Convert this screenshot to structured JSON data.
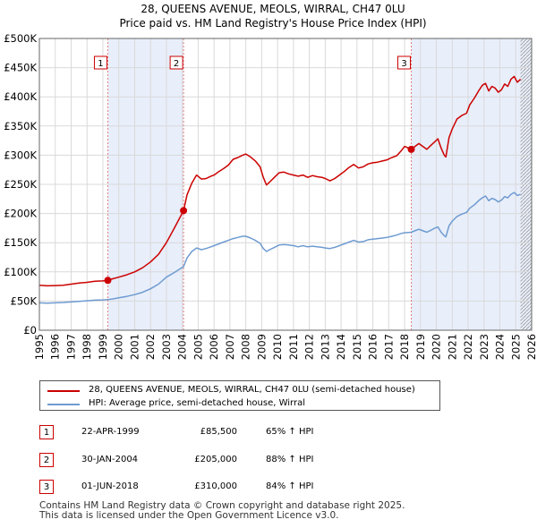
{
  "chart_data": {
    "type": "line",
    "title": "28, QUEENS AVENUE, MEOLS, WIRRAL, CH47 0LU",
    "subtitle": "Price paid vs. HM Land Registry's House Price Index (HPI)",
    "xlabel": "",
    "ylabel": "",
    "xlim": [
      1995,
      2026
    ],
    "ylim": [
      0,
      500000
    ],
    "x_ticks": [
      "1995",
      "1996",
      "1997",
      "1998",
      "1999",
      "2000",
      "2001",
      "2002",
      "2003",
      "2004",
      "2005",
      "2006",
      "2007",
      "2008",
      "2009",
      "2010",
      "2011",
      "2012",
      "2013",
      "2014",
      "2015",
      "2016",
      "2017",
      "2018",
      "2019",
      "2020",
      "2021",
      "2022",
      "2023",
      "2024",
      "2025",
      "2026"
    ],
    "y_ticks": [
      {
        "value": 0,
        "label": "£0"
      },
      {
        "value": 50000,
        "label": "£50K"
      },
      {
        "value": 100000,
        "label": "£100K"
      },
      {
        "value": 150000,
        "label": "£150K"
      },
      {
        "value": 200000,
        "label": "£200K"
      },
      {
        "value": 250000,
        "label": "£250K"
      },
      {
        "value": 300000,
        "label": "£300K"
      },
      {
        "value": 350000,
        "label": "£350K"
      },
      {
        "value": 400000,
        "label": "£400K"
      },
      {
        "value": 450000,
        "label": "£450K"
      },
      {
        "value": 500000,
        "label": "£500K"
      }
    ],
    "grid": true,
    "series": [
      {
        "name": "28, QUEENS AVENUE, MEOLS, WIRRAL, CH47 0LU (semi-detached house)",
        "color": "#cc0000",
        "points": [
          [
            1995.0,
            77000
          ],
          [
            1995.5,
            76000
          ],
          [
            1996.0,
            76500
          ],
          [
            1996.5,
            77000
          ],
          [
            1997.0,
            79000
          ],
          [
            1997.5,
            81000
          ],
          [
            1998.0,
            82000
          ],
          [
            1998.5,
            84000
          ],
          [
            1999.0,
            84500
          ],
          [
            1999.3,
            85500
          ],
          [
            1999.6,
            88000
          ],
          [
            2000.0,
            91000
          ],
          [
            2000.5,
            95000
          ],
          [
            2001.0,
            100000
          ],
          [
            2001.5,
            107000
          ],
          [
            2002.0,
            117000
          ],
          [
            2002.5,
            130000
          ],
          [
            2003.0,
            150000
          ],
          [
            2003.5,
            175000
          ],
          [
            2004.08,
            205000
          ],
          [
            2004.3,
            232000
          ],
          [
            2004.6,
            252000
          ],
          [
            2004.9,
            266000
          ],
          [
            2005.2,
            259000
          ],
          [
            2005.5,
            260000
          ],
          [
            2005.8,
            264000
          ],
          [
            2006.0,
            266000
          ],
          [
            2006.3,
            272000
          ],
          [
            2006.6,
            277000
          ],
          [
            2006.9,
            283000
          ],
          [
            2007.2,
            293000
          ],
          [
            2007.5,
            296000
          ],
          [
            2007.8,
            300000
          ],
          [
            2008.0,
            302000
          ],
          [
            2008.3,
            297000
          ],
          [
            2008.6,
            290000
          ],
          [
            2008.9,
            280000
          ],
          [
            2009.1,
            262000
          ],
          [
            2009.3,
            249000
          ],
          [
            2009.5,
            254000
          ],
          [
            2009.8,
            262000
          ],
          [
            2010.1,
            270000
          ],
          [
            2010.4,
            271000
          ],
          [
            2010.7,
            268000
          ],
          [
            2011.0,
            266000
          ],
          [
            2011.3,
            264000
          ],
          [
            2011.6,
            266000
          ],
          [
            2011.9,
            262000
          ],
          [
            2012.2,
            265000
          ],
          [
            2012.5,
            263000
          ],
          [
            2012.8,
            262000
          ],
          [
            2013.0,
            260000
          ],
          [
            2013.3,
            256000
          ],
          [
            2013.6,
            260000
          ],
          [
            2013.9,
            266000
          ],
          [
            2014.2,
            272000
          ],
          [
            2014.5,
            279000
          ],
          [
            2014.8,
            284000
          ],
          [
            2015.1,
            278000
          ],
          [
            2015.4,
            280000
          ],
          [
            2015.7,
            285000
          ],
          [
            2016.0,
            287000
          ],
          [
            2016.3,
            288000
          ],
          [
            2016.6,
            290000
          ],
          [
            2016.9,
            292000
          ],
          [
            2017.2,
            296000
          ],
          [
            2017.5,
            299000
          ],
          [
            2017.8,
            308000
          ],
          [
            2018.0,
            315000
          ],
          [
            2018.42,
            310000
          ],
          [
            2018.7,
            316000
          ],
          [
            2018.9,
            320000
          ],
          [
            2019.1,
            316000
          ],
          [
            2019.4,
            310000
          ],
          [
            2019.7,
            318000
          ],
          [
            2019.9,
            323000
          ],
          [
            2020.1,
            328000
          ],
          [
            2020.3,
            312000
          ],
          [
            2020.5,
            300000
          ],
          [
            2020.6,
            297000
          ],
          [
            2020.8,
            330000
          ],
          [
            2021.0,
            345000
          ],
          [
            2021.3,
            362000
          ],
          [
            2021.6,
            368000
          ],
          [
            2021.9,
            372000
          ],
          [
            2022.1,
            386000
          ],
          [
            2022.4,
            398000
          ],
          [
            2022.7,
            412000
          ],
          [
            2022.9,
            420000
          ],
          [
            2023.1,
            423000
          ],
          [
            2023.3,
            410000
          ],
          [
            2023.5,
            418000
          ],
          [
            2023.7,
            415000
          ],
          [
            2023.9,
            408000
          ],
          [
            2024.1,
            412000
          ],
          [
            2024.3,
            422000
          ],
          [
            2024.5,
            418000
          ],
          [
            2024.7,
            430000
          ],
          [
            2024.9,
            435000
          ],
          [
            2025.1,
            425000
          ],
          [
            2025.3,
            430000
          ]
        ]
      },
      {
        "name": "HPI: Average price, semi-detached house, Wirral",
        "color": "#6e9bd1",
        "points": [
          [
            1995.0,
            47000
          ],
          [
            1995.5,
            46500
          ],
          [
            1996.0,
            47000
          ],
          [
            1996.5,
            47500
          ],
          [
            1997.0,
            48500
          ],
          [
            1997.5,
            49500
          ],
          [
            1998.0,
            50500
          ],
          [
            1998.5,
            51500
          ],
          [
            1999.0,
            52000
          ],
          [
            1999.3,
            52500
          ],
          [
            1999.6,
            53500
          ],
          [
            2000.0,
            55500
          ],
          [
            2000.5,
            58000
          ],
          [
            2001.0,
            61000
          ],
          [
            2001.5,
            65000
          ],
          [
            2002.0,
            71000
          ],
          [
            2002.5,
            79000
          ],
          [
            2003.0,
            91000
          ],
          [
            2003.5,
            99000
          ],
          [
            2004.08,
            109000
          ],
          [
            2004.3,
            124000
          ],
          [
            2004.6,
            135000
          ],
          [
            2004.9,
            141000
          ],
          [
            2005.2,
            138000
          ],
          [
            2005.5,
            140000
          ],
          [
            2005.8,
            143000
          ],
          [
            2006.0,
            145000
          ],
          [
            2006.3,
            148000
          ],
          [
            2006.6,
            151000
          ],
          [
            2006.9,
            154000
          ],
          [
            2007.2,
            157000
          ],
          [
            2007.5,
            159000
          ],
          [
            2007.8,
            161000
          ],
          [
            2008.0,
            161000
          ],
          [
            2008.3,
            158000
          ],
          [
            2008.6,
            154000
          ],
          [
            2008.9,
            149000
          ],
          [
            2009.1,
            140000
          ],
          [
            2009.3,
            135000
          ],
          [
            2009.5,
            138000
          ],
          [
            2009.8,
            142000
          ],
          [
            2010.1,
            146000
          ],
          [
            2010.4,
            147000
          ],
          [
            2010.7,
            146000
          ],
          [
            2011.0,
            145000
          ],
          [
            2011.3,
            143000
          ],
          [
            2011.6,
            145000
          ],
          [
            2011.9,
            143000
          ],
          [
            2012.2,
            144000
          ],
          [
            2012.5,
            143000
          ],
          [
            2012.8,
            142000
          ],
          [
            2013.0,
            141000
          ],
          [
            2013.3,
            140000
          ],
          [
            2013.6,
            142000
          ],
          [
            2013.9,
            145000
          ],
          [
            2014.2,
            148000
          ],
          [
            2014.5,
            151000
          ],
          [
            2014.8,
            154000
          ],
          [
            2015.1,
            151000
          ],
          [
            2015.4,
            152000
          ],
          [
            2015.7,
            155000
          ],
          [
            2016.0,
            156000
          ],
          [
            2016.3,
            157000
          ],
          [
            2016.6,
            158000
          ],
          [
            2016.9,
            159000
          ],
          [
            2017.2,
            161000
          ],
          [
            2017.5,
            163000
          ],
          [
            2017.8,
            166000
          ],
          [
            2018.0,
            167000
          ],
          [
            2018.42,
            168000
          ],
          [
            2018.7,
            171000
          ],
          [
            2018.9,
            173000
          ],
          [
            2019.1,
            171000
          ],
          [
            2019.4,
            168000
          ],
          [
            2019.7,
            172000
          ],
          [
            2019.9,
            175000
          ],
          [
            2020.1,
            177000
          ],
          [
            2020.3,
            168000
          ],
          [
            2020.5,
            162000
          ],
          [
            2020.6,
            160000
          ],
          [
            2020.8,
            179000
          ],
          [
            2021.0,
            187000
          ],
          [
            2021.3,
            195000
          ],
          [
            2021.6,
            199000
          ],
          [
            2021.9,
            202000
          ],
          [
            2022.1,
            209000
          ],
          [
            2022.4,
            215000
          ],
          [
            2022.7,
            223000
          ],
          [
            2022.9,
            227000
          ],
          [
            2023.1,
            230000
          ],
          [
            2023.3,
            222000
          ],
          [
            2023.5,
            226000
          ],
          [
            2023.7,
            224000
          ],
          [
            2023.9,
            220000
          ],
          [
            2024.1,
            223000
          ],
          [
            2024.3,
            229000
          ],
          [
            2024.5,
            227000
          ],
          [
            2024.7,
            233000
          ],
          [
            2024.9,
            236000
          ],
          [
            2025.1,
            231000
          ],
          [
            2025.3,
            233000
          ]
        ]
      }
    ],
    "transactions": [
      {
        "num": "1",
        "x": 1999.31,
        "price": 85500,
        "date": "22-APR-1999",
        "price_label": "£85,500",
        "hpi": "65% ↑ HPI"
      },
      {
        "num": "2",
        "x": 2004.08,
        "price": 205000,
        "date": "30-JAN-2004",
        "price_label": "£205,000",
        "hpi": "88% ↑ HPI"
      },
      {
        "num": "3",
        "x": 2018.42,
        "price": 310000,
        "date": "01-JUN-2018",
        "price_label": "£310,000",
        "hpi": "84% ↑ HPI"
      }
    ],
    "shaded_periods": [
      [
        1999.31,
        2004.08
      ],
      [
        2018.42,
        2026
      ]
    ],
    "hatched_from": 2025.3
  },
  "colors": {
    "property_line": "#cc0000",
    "hpi_line": "#6e9bd1",
    "shade": "#e8eefa",
    "grid": "#d9d9d9",
    "marker_border": "#cc0000",
    "vline": "#e08080"
  },
  "legend": {
    "property": "28, QUEENS AVENUE, MEOLS, WIRRAL, CH47 0LU (semi-detached house)",
    "hpi": "HPI: Average price, semi-detached house, Wirral"
  },
  "footer": {
    "line1": "Contains HM Land Registry data © Crown copyright and database right 2025.",
    "line2": "This data is licensed under the Open Government Licence v3.0."
  }
}
